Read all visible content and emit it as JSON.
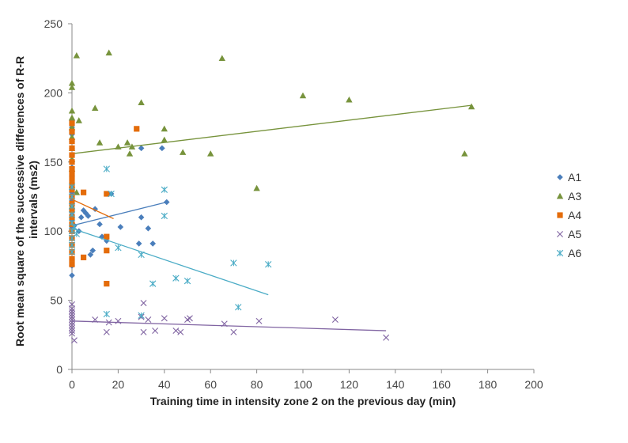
{
  "chart_data": {
    "type": "scatter",
    "xlabel": "Training time in intensity zone 2 on the previous day (min)",
    "ylabel_lines": [
      "Root mean square of the successive differences of R-R",
      "intervals (ms2)"
    ],
    "xlim": [
      0,
      200
    ],
    "ylim": [
      0,
      250
    ],
    "xticks": [
      "0",
      "20",
      "40",
      "60",
      "80",
      "100",
      "120",
      "140",
      "160",
      "180",
      "200"
    ],
    "yticks": [
      "0",
      "50",
      "100",
      "150",
      "200",
      "250"
    ],
    "grid": false,
    "legend_position": "right",
    "series": [
      {
        "name": "A1",
        "marker": "diamond",
        "color": "#4a7ebb",
        "points": [
          [
            0,
            68
          ],
          [
            0,
            75
          ],
          [
            0,
            80
          ],
          [
            0,
            85
          ],
          [
            0,
            90
          ],
          [
            0,
            95
          ],
          [
            0,
            100
          ],
          [
            0,
            103
          ],
          [
            0,
            108
          ],
          [
            0,
            112
          ],
          [
            0,
            118
          ],
          [
            0,
            122
          ],
          [
            0,
            128
          ],
          [
            0,
            135
          ],
          [
            0,
            140
          ],
          [
            0,
            146
          ],
          [
            0,
            150
          ],
          [
            0,
            155
          ],
          [
            0,
            160
          ],
          [
            0,
            165
          ],
          [
            0,
            170
          ],
          [
            0,
            175
          ],
          [
            0,
            180
          ],
          [
            1,
            104
          ],
          [
            3,
            100
          ],
          [
            4,
            110
          ],
          [
            5,
            115
          ],
          [
            6,
            113
          ],
          [
            7,
            111
          ],
          [
            8,
            83
          ],
          [
            9,
            86
          ],
          [
            10,
            116
          ],
          [
            12,
            105
          ],
          [
            13,
            96
          ],
          [
            15,
            93
          ],
          [
            17,
            127
          ],
          [
            21,
            103
          ],
          [
            29,
            91
          ],
          [
            30,
            110
          ],
          [
            30,
            160
          ],
          [
            33,
            102
          ],
          [
            35,
            91
          ],
          [
            39,
            160
          ],
          [
            41,
            121
          ]
        ],
        "trend": [
          [
            0,
            104
          ],
          [
            41,
            121
          ]
        ]
      },
      {
        "name": "A3",
        "marker": "triangle",
        "color": "#77933c",
        "points": [
          [
            0,
            207
          ],
          [
            0,
            204
          ],
          [
            0,
            187
          ],
          [
            0,
            182
          ],
          [
            0,
            175
          ],
          [
            0,
            168
          ],
          [
            0,
            160
          ],
          [
            0,
            152
          ],
          [
            0,
            145
          ],
          [
            0,
            133
          ],
          [
            0,
            118
          ],
          [
            2,
            227
          ],
          [
            2,
            128
          ],
          [
            3,
            180
          ],
          [
            10,
            189
          ],
          [
            12,
            164
          ],
          [
            16,
            229
          ],
          [
            20,
            161
          ],
          [
            24,
            164
          ],
          [
            25,
            156
          ],
          [
            26,
            161
          ],
          [
            30,
            193
          ],
          [
            40,
            174
          ],
          [
            40,
            166
          ],
          [
            48,
            157
          ],
          [
            60,
            156
          ],
          [
            65,
            225
          ],
          [
            80,
            131
          ],
          [
            100,
            198
          ],
          [
            120,
            195
          ],
          [
            170,
            156
          ],
          [
            173,
            190
          ]
        ],
        "trend": [
          [
            0,
            156
          ],
          [
            173,
            191
          ]
        ]
      },
      {
        "name": "A4",
        "marker": "square",
        "color": "#e46c0a",
        "points": [
          [
            0,
            178
          ],
          [
            0,
            172
          ],
          [
            0,
            165
          ],
          [
            0,
            160
          ],
          [
            0,
            155
          ],
          [
            0,
            150
          ],
          [
            0,
            145
          ],
          [
            0,
            142
          ],
          [
            0,
            138
          ],
          [
            0,
            134
          ],
          [
            0,
            130
          ],
          [
            0,
            125
          ],
          [
            0,
            120
          ],
          [
            0,
            115
          ],
          [
            0,
            110
          ],
          [
            0,
            105
          ],
          [
            0,
            100
          ],
          [
            0,
            95
          ],
          [
            0,
            90
          ],
          [
            0,
            85
          ],
          [
            0,
            80
          ],
          [
            0,
            76
          ],
          [
            5,
            128
          ],
          [
            5,
            81
          ],
          [
            15,
            127
          ],
          [
            15,
            96
          ],
          [
            15,
            86
          ],
          [
            15,
            62
          ],
          [
            28,
            174
          ]
        ],
        "trend": [
          [
            0,
            123
          ],
          [
            18,
            109
          ]
        ]
      },
      {
        "name": "A5",
        "marker": "x",
        "color": "#8064a2",
        "points": [
          [
            0,
            47
          ],
          [
            0,
            44
          ],
          [
            0,
            42
          ],
          [
            0,
            40
          ],
          [
            0,
            38
          ],
          [
            0,
            36
          ],
          [
            0,
            34
          ],
          [
            0,
            32
          ],
          [
            0,
            30
          ],
          [
            0,
            28
          ],
          [
            0,
            26
          ],
          [
            1,
            21
          ],
          [
            10,
            36
          ],
          [
            15,
            27
          ],
          [
            16,
            34
          ],
          [
            20,
            35
          ],
          [
            30,
            38
          ],
          [
            31,
            27
          ],
          [
            31,
            48
          ],
          [
            33,
            36
          ],
          [
            36,
            28
          ],
          [
            40,
            37
          ],
          [
            45,
            28
          ],
          [
            47,
            27
          ],
          [
            50,
            36
          ],
          [
            51,
            37
          ],
          [
            66,
            33
          ],
          [
            70,
            27
          ],
          [
            81,
            35
          ],
          [
            114,
            36
          ],
          [
            136,
            23
          ]
        ],
        "trend": [
          [
            0,
            35
          ],
          [
            136,
            28
          ]
        ]
      },
      {
        "name": "A6",
        "marker": "star",
        "color": "#4bacc6",
        "points": [
          [
            0,
            132
          ],
          [
            0,
            125
          ],
          [
            0,
            118
          ],
          [
            0,
            112
          ],
          [
            0,
            106
          ],
          [
            0,
            100
          ],
          [
            0,
            95
          ],
          [
            0,
            90
          ],
          [
            0,
            85
          ],
          [
            1,
            103
          ],
          [
            2,
            98
          ],
          [
            15,
            145
          ],
          [
            15,
            40
          ],
          [
            17,
            127
          ],
          [
            20,
            88
          ],
          [
            30,
            83
          ],
          [
            30,
            39
          ],
          [
            35,
            62
          ],
          [
            40,
            130
          ],
          [
            40,
            111
          ],
          [
            45,
            66
          ],
          [
            50,
            64
          ],
          [
            70,
            77
          ],
          [
            72,
            45
          ],
          [
            85,
            76
          ]
        ],
        "trend": [
          [
            0,
            102
          ],
          [
            85,
            54
          ]
        ]
      }
    ]
  }
}
